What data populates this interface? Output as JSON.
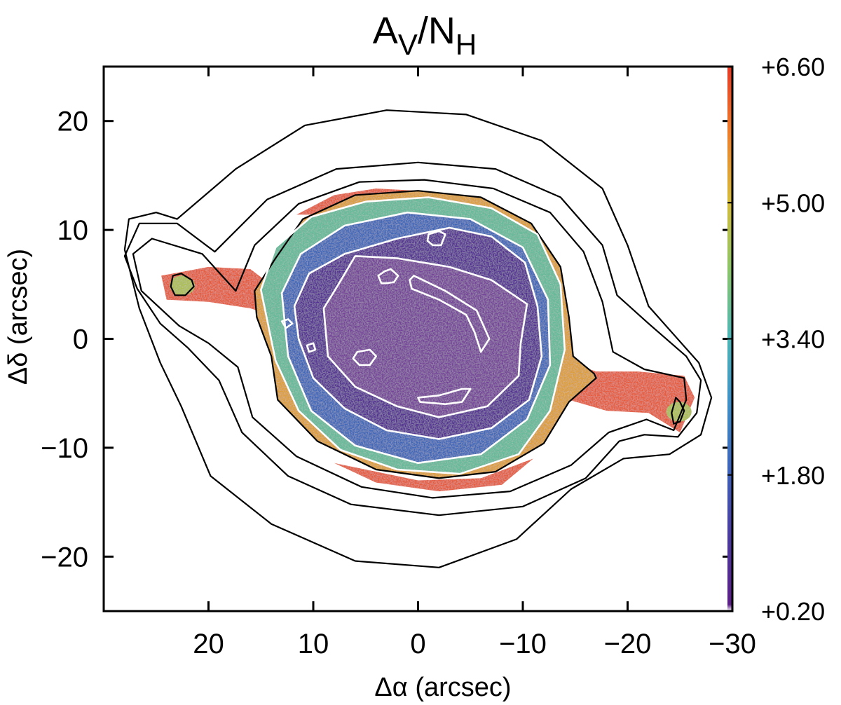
{
  "chart_data": {
    "type": "heatmap",
    "title": {
      "base": "A",
      "sub1": "V",
      "mid": "/N",
      "sub2": "H"
    },
    "xlabel": "Δα (arcsec)",
    "ylabel": "Δδ (arcsec)",
    "xlim": [
      30,
      -30
    ],
    "ylim": [
      -25,
      25
    ],
    "xticks": [
      20,
      10,
      0,
      -10,
      -20,
      -30
    ],
    "xtick_labels": [
      "20",
      "10",
      "0",
      "−10",
      "−20",
      "−30"
    ],
    "yticks": [
      20,
      10,
      0,
      -10,
      -20
    ],
    "ytick_labels": [
      "20",
      "10",
      "0",
      "−10",
      "−20"
    ],
    "colorbar": {
      "min": 0.2,
      "max": 6.6,
      "tick_values": [
        6.6,
        5.0,
        3.4,
        1.8,
        0.2
      ],
      "tick_labels": [
        "+6.60",
        "+5.00",
        "+3.40",
        "+1.80",
        "+0.20"
      ],
      "colormap": [
        "#ffffff",
        "#5b1f86",
        "#4a3a9e",
        "#3d62b8",
        "#3f8fc6",
        "#4fb6b4",
        "#8cc468",
        "#d5bb3c",
        "#ec7e2c",
        "#e43a26"
      ]
    },
    "features": {
      "inner_shell_value": 0.8,
      "rim_value": 3.0,
      "shell_edge_value": 5.5,
      "jets_value": 6.4,
      "contour_levels_white": 4,
      "contour_levels_black": 5
    },
    "contours": {
      "white": [
        {
          "name": "white-contour-1",
          "points": [
            [
              15.0,
              4.5
            ],
            [
              13.6,
              8.4
            ],
            [
              10.2,
              11.2
            ],
            [
              5.0,
              12.6
            ],
            [
              -1.0,
              13.0
            ],
            [
              -7.0,
              12.0
            ],
            [
              -11.4,
              9.6
            ],
            [
              -13.6,
              5.0
            ],
            [
              -14.0,
              -1.0
            ],
            [
              -12.6,
              -6.6
            ],
            [
              -9.6,
              -10.6
            ],
            [
              -4.0,
              -12.4
            ],
            [
              2.0,
              -12.0
            ],
            [
              7.4,
              -10.2
            ],
            [
              11.4,
              -6.6
            ],
            [
              13.6,
              -2.0
            ]
          ]
        },
        {
          "name": "white-contour-2",
          "points": [
            [
              13.0,
              4.2
            ],
            [
              11.2,
              7.8
            ],
            [
              7.0,
              10.4
            ],
            [
              1.0,
              11.6
            ],
            [
              -5.0,
              11.0
            ],
            [
              -10.0,
              8.4
            ],
            [
              -12.4,
              3.6
            ],
            [
              -12.6,
              -2.4
            ],
            [
              -10.4,
              -7.4
            ],
            [
              -6.0,
              -10.6
            ],
            [
              0.0,
              -11.4
            ],
            [
              6.0,
              -9.8
            ],
            [
              10.2,
              -6.6
            ],
            [
              12.4,
              -1.6
            ]
          ]
        },
        {
          "name": "white-contour-3",
          "points": [
            [
              11.8,
              3.0
            ],
            [
              10.4,
              6.0
            ],
            [
              7.0,
              7.8
            ],
            [
              2.0,
              9.2
            ],
            [
              -3.0,
              10.2
            ],
            [
              -7.0,
              9.4
            ],
            [
              -10.2,
              7.0
            ],
            [
              -11.4,
              3.0
            ],
            [
              -11.8,
              -1.6
            ],
            [
              -10.6,
              -5.6
            ],
            [
              -7.0,
              -8.2
            ],
            [
              -2.0,
              -9.2
            ],
            [
              3.0,
              -8.4
            ],
            [
              7.0,
              -6.4
            ],
            [
              10.0,
              -3.6
            ],
            [
              11.4,
              0.0
            ]
          ]
        },
        {
          "name": "white-contour-4",
          "points": [
            [
              9.0,
              2.8
            ],
            [
              7.6,
              5.0
            ],
            [
              6.0,
              7.6
            ],
            [
              2.0,
              7.4
            ],
            [
              -3.0,
              6.6
            ],
            [
              -7.0,
              5.4
            ],
            [
              -10.4,
              3.2
            ],
            [
              -9.8,
              -0.4
            ],
            [
              -9.6,
              -3.4
            ],
            [
              -6.6,
              -6.2
            ],
            [
              -2.0,
              -7.2
            ],
            [
              2.0,
              -6.2
            ],
            [
              6.0,
              -4.4
            ],
            [
              8.6,
              -1.6
            ]
          ]
        },
        {
          "name": "white-contour-5",
          "points": [
            [
              0.4,
              5.8
            ],
            [
              -2.6,
              4.4
            ],
            [
              -5.6,
              2.6
            ],
            [
              -6.8,
              0.0
            ],
            [
              -6.0,
              -1.2
            ],
            [
              -5.4,
              0.6
            ],
            [
              -4.6,
              2.2
            ],
            [
              -2.0,
              3.6
            ],
            [
              0.6,
              4.6
            ],
            [
              0.8,
              5.4
            ]
          ]
        },
        {
          "name": "white-contour-6",
          "points": [
            [
              3.8,
              5.8
            ],
            [
              3.2,
              6.2
            ],
            [
              2.6,
              6.4
            ],
            [
              1.9,
              5.8
            ],
            [
              2.3,
              5.2
            ],
            [
              3.1,
              5.1
            ],
            [
              3.5,
              5.1
            ]
          ]
        },
        {
          "name": "white-contour-7",
          "points": [
            [
              -1.0,
              9.6
            ],
            [
              -2.0,
              9.9
            ],
            [
              -2.6,
              9.6
            ],
            [
              -2.2,
              8.6
            ],
            [
              -1.4,
              8.6
            ],
            [
              -0.9,
              9.0
            ]
          ]
        },
        {
          "name": "white-contour-8",
          "points": [
            [
              -0.2,
              -5.8
            ],
            [
              -2.6,
              -6.0
            ],
            [
              -4.2,
              -5.8
            ],
            [
              -5.0,
              -4.6
            ],
            [
              -4.2,
              -4.6
            ],
            [
              -2.0,
              -5.2
            ],
            [
              0.0,
              -5.4
            ]
          ]
        },
        {
          "name": "white-contour-9",
          "points": [
            [
              5.8,
              -1.2
            ],
            [
              4.6,
              -1.0
            ],
            [
              4.0,
              -1.6
            ],
            [
              4.6,
              -2.4
            ],
            [
              5.6,
              -2.4
            ],
            [
              6.2,
              -1.8
            ]
          ]
        },
        {
          "name": "white-contour-10",
          "points": [
            [
              13.0,
              1.6
            ],
            [
              12.4,
              1.8
            ],
            [
              12.0,
              1.4
            ],
            [
              12.6,
              1.0
            ]
          ]
        },
        {
          "name": "white-contour-11",
          "points": [
            [
              10.6,
              -0.6
            ],
            [
              10.0,
              -0.4
            ],
            [
              9.8,
              -1.0
            ],
            [
              10.4,
              -1.2
            ]
          ]
        }
      ],
      "black": [
        {
          "name": "black-contour-1",
          "points": [
            [
              15.6,
              4.4
            ],
            [
              13.6,
              7.4
            ],
            [
              11.0,
              11.0
            ],
            [
              6.0,
              13.2
            ],
            [
              0.0,
              13.6
            ],
            [
              -6.0,
              13.0
            ],
            [
              -10.8,
              10.6
            ],
            [
              -13.6,
              6.6
            ],
            [
              -14.4,
              2.0
            ],
            [
              -14.8,
              -1.6
            ],
            [
              -16.8,
              -3.2
            ],
            [
              -17.0,
              -3.6
            ],
            [
              -14.4,
              -5.8
            ],
            [
              -12.0,
              -9.6
            ],
            [
              -7.4,
              -12.2
            ],
            [
              -2.0,
              -12.8
            ],
            [
              4.0,
              -12.0
            ],
            [
              9.6,
              -9.4
            ],
            [
              13.4,
              -5.6
            ],
            [
              14.0,
              -1.6
            ],
            [
              15.4,
              2.0
            ]
          ]
        },
        {
          "name": "black-contour-2",
          "points": [
            [
              17.4,
              4.4
            ],
            [
              15.6,
              8.6
            ],
            [
              11.4,
              12.4
            ],
            [
              5.6,
              14.4
            ],
            [
              -0.6,
              14.6
            ],
            [
              -7.2,
              13.8
            ],
            [
              -12.6,
              11.6
            ],
            [
              -15.8,
              8.0
            ],
            [
              -17.6,
              3.4
            ],
            [
              -18.6,
              -1.2
            ],
            [
              -21.6,
              -2.8
            ],
            [
              -25.4,
              -3.6
            ],
            [
              -25.6,
              -5.6
            ],
            [
              -24.4,
              -8.4
            ],
            [
              -21.8,
              -7.4
            ],
            [
              -18.2,
              -8.6
            ],
            [
              -14.6,
              -11.6
            ],
            [
              -8.8,
              -14.0
            ],
            [
              -1.4,
              -14.6
            ],
            [
              5.4,
              -13.6
            ],
            [
              11.6,
              -10.8
            ],
            [
              15.8,
              -7.2
            ],
            [
              17.2,
              -2.6
            ],
            [
              20.0,
              -0.4
            ],
            [
              22.8,
              1.2
            ],
            [
              26.4,
              4.4
            ],
            [
              27.2,
              7.8
            ],
            [
              25.4,
              9.2
            ],
            [
              20.6,
              7.8
            ]
          ]
        },
        {
          "name": "black-contour-3",
          "points": [
            [
              19.4,
              8.0
            ],
            [
              14.4,
              12.8
            ],
            [
              7.8,
              15.6
            ],
            [
              0.0,
              16.2
            ],
            [
              -7.4,
              15.6
            ],
            [
              -13.6,
              13.0
            ],
            [
              -17.6,
              8.6
            ],
            [
              -19.0,
              4.0
            ],
            [
              -22.0,
              1.4
            ],
            [
              -25.6,
              -1.6
            ],
            [
              -27.0,
              -3.8
            ],
            [
              -26.6,
              -6.8
            ],
            [
              -24.8,
              -9.0
            ],
            [
              -21.6,
              -8.8
            ],
            [
              -19.2,
              -9.4
            ],
            [
              -16.0,
              -12.8
            ],
            [
              -10.0,
              -15.4
            ],
            [
              -2.0,
              -16.2
            ],
            [
              6.4,
              -15.2
            ],
            [
              12.4,
              -12.6
            ],
            [
              16.8,
              -8.6
            ],
            [
              19.0,
              -3.8
            ],
            [
              22.0,
              -0.8
            ],
            [
              24.6,
              1.4
            ],
            [
              26.8,
              4.6
            ],
            [
              28.0,
              7.6
            ],
            [
              26.6,
              10.6
            ],
            [
              23.0,
              10.6
            ]
          ]
        },
        {
          "name": "black-contour-4",
          "points": [
            [
              23.0,
              11.0
            ],
            [
              17.4,
              15.6
            ],
            [
              10.8,
              19.6
            ],
            [
              3.0,
              21.0
            ],
            [
              -4.6,
              20.6
            ],
            [
              -11.8,
              18.2
            ],
            [
              -17.6,
              13.8
            ],
            [
              -20.0,
              8.6
            ],
            [
              -22.0,
              3.0
            ],
            [
              -24.4,
              0.4
            ],
            [
              -26.8,
              -2.2
            ],
            [
              -28.0,
              -5.4
            ],
            [
              -27.0,
              -8.8
            ],
            [
              -24.0,
              -10.6
            ],
            [
              -19.6,
              -11.0
            ],
            [
              -14.6,
              -13.8
            ],
            [
              -9.4,
              -18.4
            ],
            [
              -2.0,
              -21.0
            ],
            [
              6.0,
              -20.4
            ],
            [
              14.0,
              -17.0
            ],
            [
              19.8,
              -12.6
            ],
            [
              22.6,
              -6.2
            ],
            [
              24.6,
              -2.2
            ],
            [
              26.6,
              2.8
            ],
            [
              28.0,
              8.2
            ],
            [
              27.6,
              11.0
            ],
            [
              25.0,
              11.6
            ]
          ]
        },
        {
          "name": "black-contour-5",
          "points": [
            [
              23.4,
              5.8
            ],
            [
              22.6,
              6.0
            ],
            [
              21.6,
              5.4
            ],
            [
              21.4,
              4.8
            ],
            [
              22.2,
              4.0
            ],
            [
              23.2,
              4.0
            ],
            [
              23.6,
              4.8
            ]
          ]
        },
        {
          "name": "black-contour-6",
          "points": [
            [
              -24.6,
              -5.4
            ],
            [
              -25.0,
              -5.8
            ],
            [
              -25.4,
              -6.6
            ],
            [
              -25.0,
              -7.6
            ],
            [
              -24.4,
              -7.8
            ],
            [
              -24.2,
              -6.8
            ]
          ]
        }
      ]
    }
  }
}
